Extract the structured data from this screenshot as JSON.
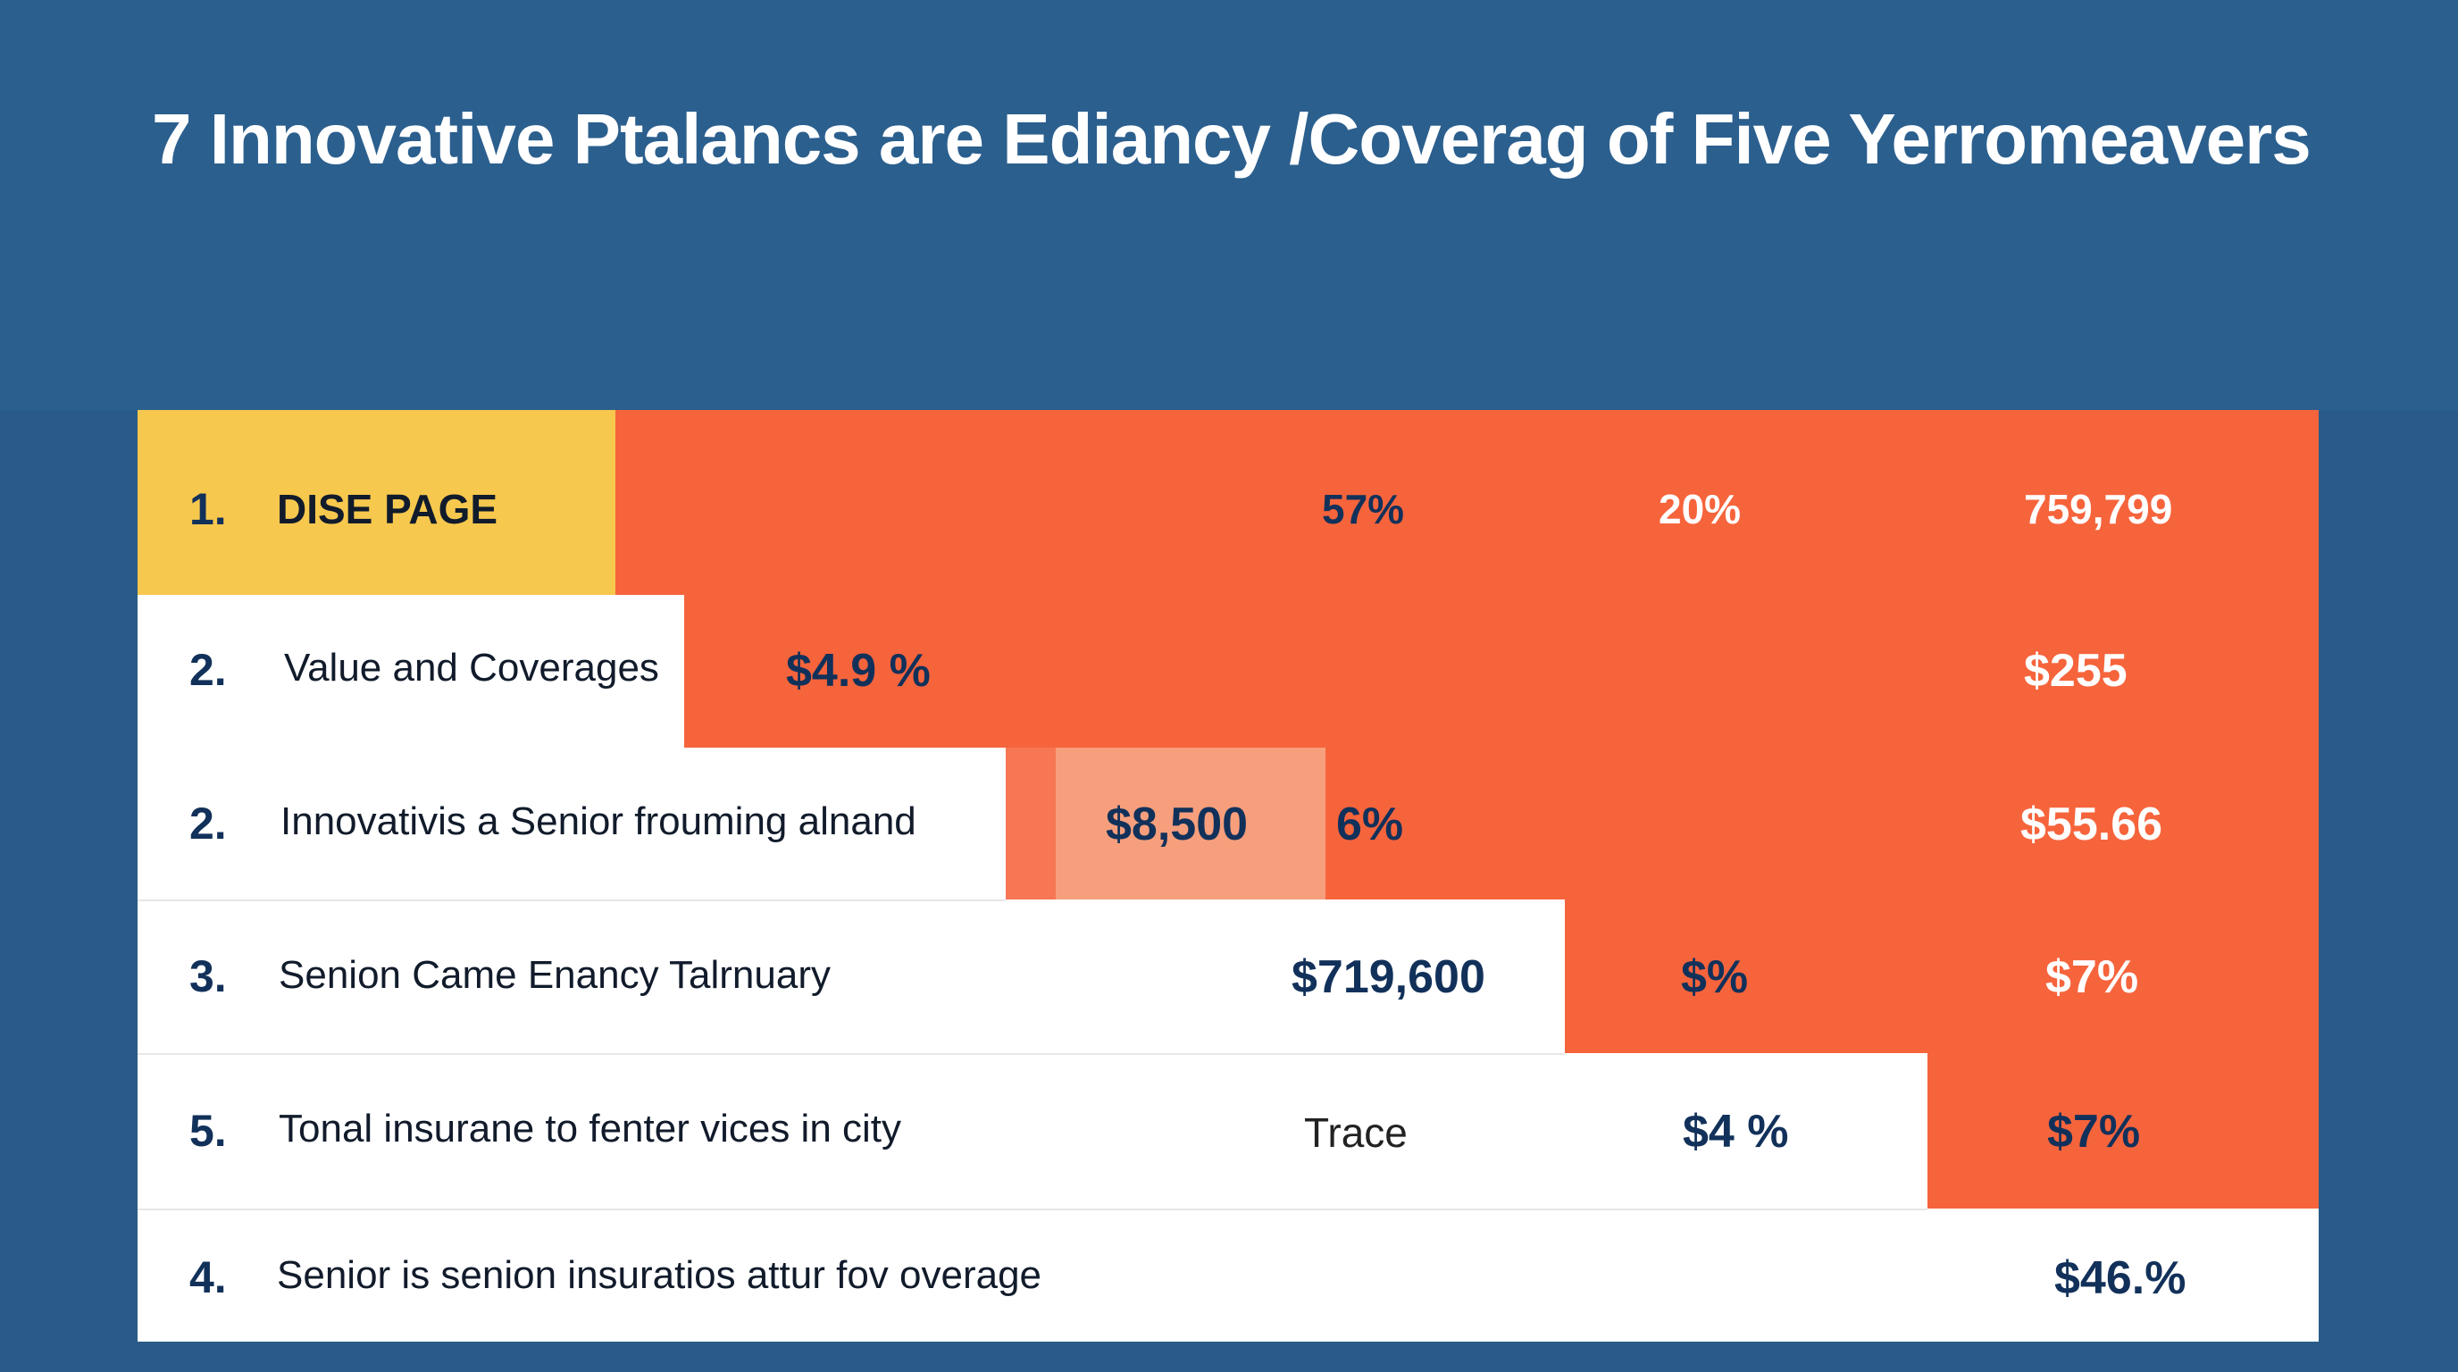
{
  "title": "7 Innovative Ptalancs are Ediancy /Coverag of Five Yerromeavers",
  "rows": [
    {
      "number": "1.",
      "label": "DISE PAGE",
      "values": [
        "57%",
        "20%",
        "759,799"
      ]
    },
    {
      "number": "2.",
      "label": "Value and Coverages",
      "values": [
        "$4.9 %",
        "$255"
      ]
    },
    {
      "number": "2.",
      "label": "Innovativis a Senior frouming alnand",
      "values": [
        "$8,500",
        "6%",
        "$55.66"
      ]
    },
    {
      "number": "3.",
      "label": "Senion Came Enancy Talrnuary",
      "values": [
        "$719,600",
        "$%",
        "$7%"
      ]
    },
    {
      "number": "5.",
      "label": "Tonal insurane to fenter vices in city",
      "values": [
        "Trace",
        "$4 %",
        "$7%"
      ]
    },
    {
      "number": "4.",
      "label": "Senior is senion insuratios attur fov overage",
      "values": [
        "$46.%"
      ]
    }
  ],
  "colors": {
    "background": "#2a5e8c",
    "orange": "#f6643c",
    "yellow": "#f7c84e",
    "peach": "#f79f7c",
    "navy_text": "#12315a"
  }
}
